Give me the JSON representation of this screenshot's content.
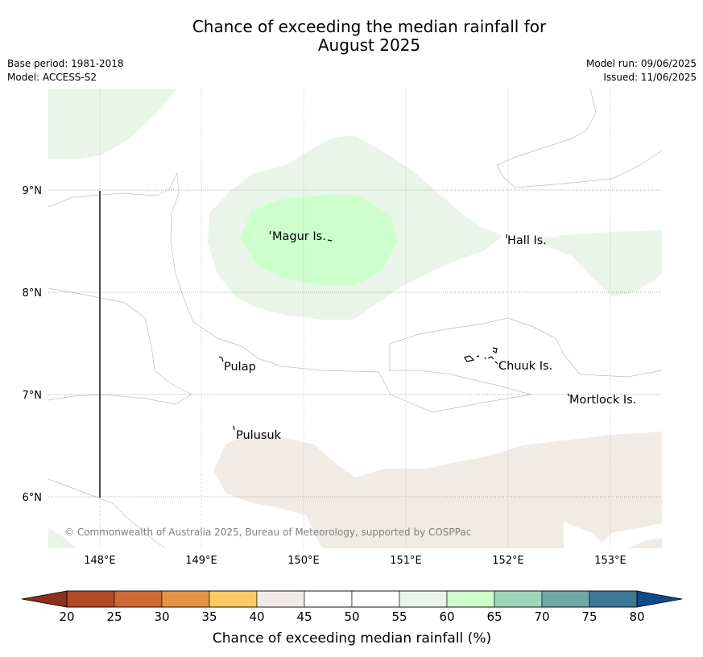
{
  "title": {
    "line1": "Chance of exceeding the median rainfall for",
    "line2": "August 2025"
  },
  "meta_left": {
    "base_period": "Base period: 1981-2018",
    "model": "Model: ACCESS-S2"
  },
  "meta_right": {
    "model_run": "Model run: 09/06/2025",
    "issued": "Issued: 11/06/2025"
  },
  "map": {
    "lon_ticks": [
      "148°E",
      "149°E",
      "150°E",
      "151°E",
      "152°E",
      "153°E"
    ],
    "lat_ticks": [
      "9°N",
      "8°N",
      "7°N",
      "6°N"
    ],
    "places": [
      {
        "name": "Magur Is."
      },
      {
        "name": "Hall Is."
      },
      {
        "name": "Pulap"
      },
      {
        "name": "Chuuk Is."
      },
      {
        "name": "Mortlock Is."
      },
      {
        "name": "Pulusuk"
      }
    ],
    "copyright": "© Commonwealth of Australia 2025, Bureau of Meteorology, supported by COSPPac",
    "fill_colors": {
      "40-45": "#f0ebe5",
      "55-60": "#e9f5e9",
      "60-65": "#ccffcc"
    }
  },
  "colorbar": {
    "label": "Chance of exceeding median rainfall (%)",
    "ticks": [
      "20",
      "25",
      "30",
      "35",
      "40",
      "45",
      "50",
      "55",
      "60",
      "65",
      "70",
      "75",
      "80"
    ],
    "under_color": "#8f2f1c",
    "over_color": "#0c4b8c",
    "colors": [
      "#b34a25",
      "#cf6832",
      "#e39445",
      "#fecb62",
      "#f0ebe5",
      "#ffffff",
      "#ffffff",
      "#e9f5e9",
      "#ccffcc",
      "#9dd5bb",
      "#6ea7a8",
      "#3d7897"
    ]
  }
}
